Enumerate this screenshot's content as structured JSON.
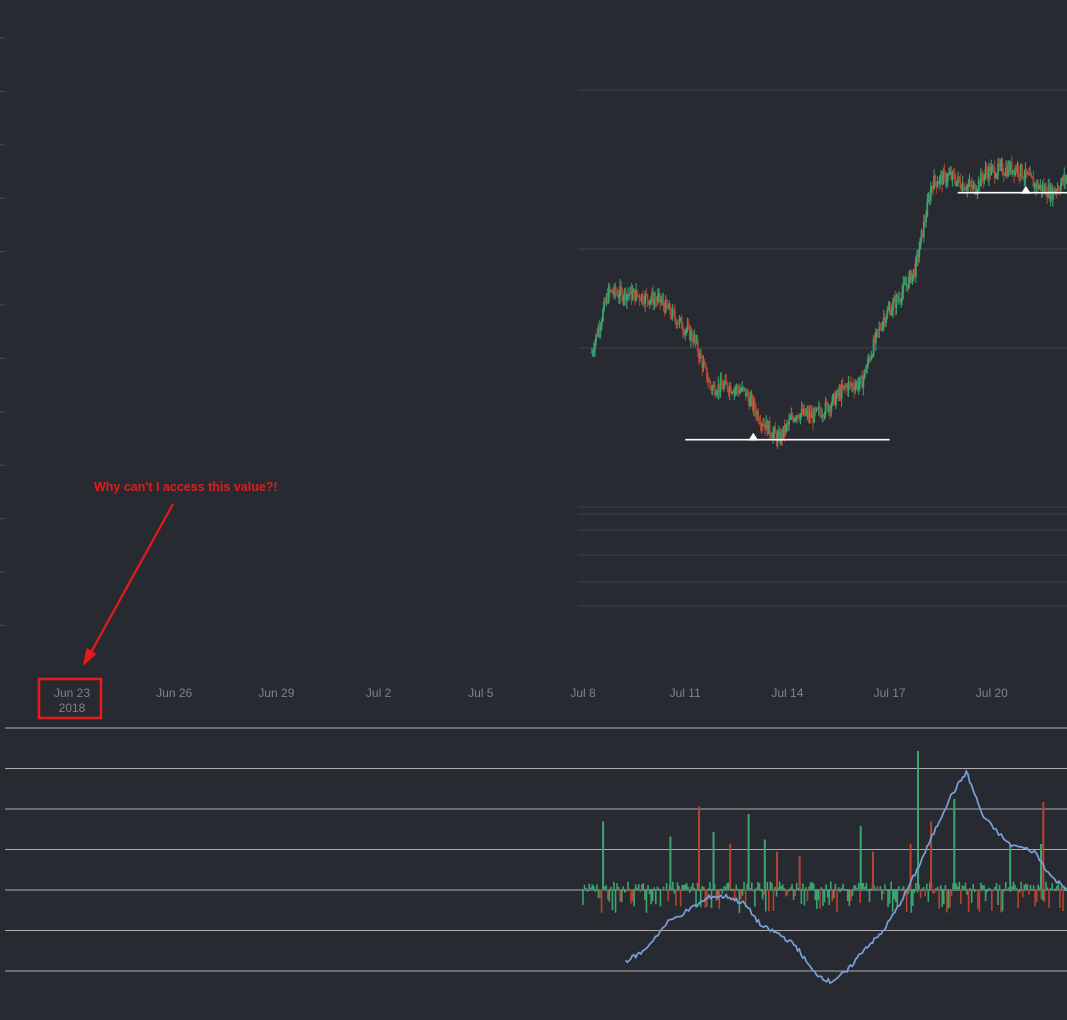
{
  "theme": {
    "background": "#282a32",
    "up_color": "#3aa571",
    "down_color": "#b4452f",
    "indicator_color": "#7b9fd9",
    "annotation_color": "#e31b1b",
    "axis_label_color": "#7f828a",
    "gridline_color": "#c8c8c8"
  },
  "annotation": {
    "text": "Why can't I access this value?!",
    "target": "first-x-tick-label"
  },
  "chart_data": [
    {
      "type": "candlestick",
      "panel": "price",
      "xlabel": "",
      "ylabel": "",
      "x_ticks": [
        {
          "label": "Jun 23",
          "sublabel": "2018",
          "highlighted": true
        },
        {
          "label": "Jun 26"
        },
        {
          "label": "Jun 29"
        },
        {
          "label": "Jul 2"
        },
        {
          "label": "Jul 5"
        },
        {
          "label": "Jul 8"
        },
        {
          "label": "Jul 11"
        },
        {
          "label": "Jul 14"
        },
        {
          "label": "Jul 17"
        },
        {
          "label": "Jul 20"
        }
      ],
      "x_range": [
        "2018-06-23",
        "2018-07-23"
      ],
      "data_start": "2018-07-08",
      "y_axis_labels_visible": false,
      "close_path": [
        [
          "2018-07-08",
          0.5
        ],
        [
          "2018-07-08",
          0.645
        ],
        [
          "2018-07-09",
          0.64
        ],
        [
          "2018-07-10",
          0.625
        ],
        [
          "2018-07-10",
          0.58
        ],
        [
          "2018-07-11",
          0.535
        ],
        [
          "2018-07-11",
          0.415
        ],
        [
          "2018-07-12",
          0.42
        ],
        [
          "2018-07-12",
          0.405
        ],
        [
          "2018-07-13",
          0.335
        ],
        [
          "2018-07-13",
          0.29
        ],
        [
          "2018-07-14",
          0.355
        ],
        [
          "2018-07-14",
          0.345
        ],
        [
          "2018-07-15",
          0.375
        ],
        [
          "2018-07-15",
          0.42
        ],
        [
          "2018-07-16",
          0.425
        ],
        [
          "2018-07-16",
          0.51
        ],
        [
          "2018-07-16",
          0.585
        ],
        [
          "2018-07-17",
          0.63
        ],
        [
          "2018-07-17",
          0.7
        ],
        [
          "2018-07-18",
          0.91
        ],
        [
          "2018-07-18",
          0.925
        ],
        [
          "2018-07-19",
          0.905
        ],
        [
          "2018-07-19",
          0.895
        ],
        [
          "2018-07-19",
          0.935
        ],
        [
          "2018-07-20",
          0.94
        ],
        [
          "2018-07-20",
          0.945
        ],
        [
          "2018-07-21",
          0.905
        ],
        [
          "2018-07-21",
          0.885
        ],
        [
          "2018-07-22",
          0.925
        ],
        [
          "2018-07-22",
          0.93
        ]
      ],
      "support_lines": [
        {
          "y": 0.29,
          "x_start": "2018-07-11",
          "x_end": "2018-07-17",
          "marker_at": "2018-07-13"
        },
        {
          "y": 0.885,
          "x_start": "2018-07-19",
          "x_end": "2018-07-23",
          "marker_at": "2018-07-21"
        }
      ]
    },
    {
      "type": "histogram",
      "panel": "indicator",
      "y_range": [
        -0.6,
        1.05
      ],
      "data_start": "2018-07-08",
      "spikes": [
        [
          "2018-07-08",
          0.45,
          "up"
        ],
        [
          "2018-07-10",
          0.35,
          "up"
        ],
        [
          "2018-07-11",
          0.55,
          "down"
        ],
        [
          "2018-07-11",
          0.38,
          "up"
        ],
        [
          "2018-07-12",
          0.3,
          "down"
        ],
        [
          "2018-07-12",
          0.5,
          "up"
        ],
        [
          "2018-07-13",
          0.25,
          "down"
        ],
        [
          "2018-07-13",
          0.33,
          "up"
        ],
        [
          "2018-07-14",
          0.22,
          "down"
        ],
        [
          "2018-07-16",
          0.25,
          "down"
        ],
        [
          "2018-07-16",
          0.42,
          "up"
        ],
        [
          "2018-07-17",
          0.92,
          "up"
        ],
        [
          "2018-07-17",
          0.3,
          "down"
        ],
        [
          "2018-07-18",
          0.6,
          "up"
        ],
        [
          "2018-07-18",
          0.45,
          "down"
        ],
        [
          "2018-07-20",
          0.3,
          "up"
        ],
        [
          "2018-07-21",
          0.58,
          "down"
        ],
        [
          "2018-07-21",
          0.3,
          "up"
        ]
      ],
      "line": {
        "name": "",
        "points": [
          [
            "2018-07-09",
            -0.48
          ],
          [
            "2018-07-09",
            -0.42
          ],
          [
            "2018-07-10",
            -0.22
          ],
          [
            "2018-07-11",
            -0.12
          ],
          [
            "2018-07-11",
            -0.05
          ],
          [
            "2018-07-12",
            -0.05
          ],
          [
            "2018-07-12",
            -0.1
          ],
          [
            "2018-07-13",
            -0.25
          ],
          [
            "2018-07-13",
            -0.3
          ],
          [
            "2018-07-14",
            -0.38
          ],
          [
            "2018-07-14",
            -0.55
          ],
          [
            "2018-07-15",
            -0.62
          ],
          [
            "2018-07-15",
            -0.55
          ],
          [
            "2018-07-16",
            -0.4
          ],
          [
            "2018-07-16",
            -0.3
          ],
          [
            "2018-07-17",
            -0.12
          ],
          [
            "2018-07-17",
            0.1
          ],
          [
            "2018-07-18",
            0.35
          ],
          [
            "2018-07-18",
            0.6
          ],
          [
            "2018-07-19",
            0.78
          ],
          [
            "2018-07-19",
            0.48
          ],
          [
            "2018-07-20",
            0.3
          ],
          [
            "2018-07-21",
            0.25
          ],
          [
            "2018-07-21",
            0.08
          ],
          [
            "2018-07-22",
            -0.05
          ]
        ]
      },
      "gridlines": 7
    }
  ]
}
